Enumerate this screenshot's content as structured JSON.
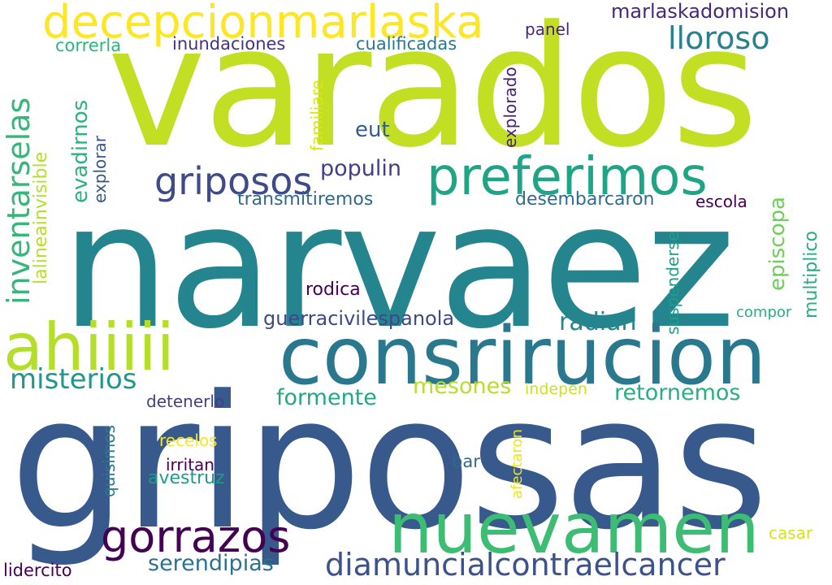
{
  "words": [
    {
      "id": "varados",
      "text": "varados",
      "color": "#c2df23"
    },
    {
      "id": "narvaez",
      "text": "narvaez",
      "color": "#25858e"
    },
    {
      "id": "griposas",
      "text": "griposas",
      "color": "#38598c"
    },
    {
      "id": "consrirucion",
      "text": "consrirucion",
      "color": "#2a788e"
    },
    {
      "id": "nuevamen",
      "text": "nuevamen",
      "color": "#3dbc74"
    },
    {
      "id": "ahiiiii",
      "text": "ahiiiii",
      "color": "#b5de2b"
    },
    {
      "id": "preferimos",
      "text": "preferimos",
      "color": "#20a486"
    },
    {
      "id": "decepcionmarlaska",
      "text": "decepcionmarlaska",
      "color": "#fde725"
    },
    {
      "id": "gorrazos",
      "text": "gorrazos",
      "color": "#440154"
    },
    {
      "id": "diamuncialcontraelcancer",
      "text": "diamuncialcontraelcancer",
      "color": "#3b528b"
    },
    {
      "id": "griposos",
      "text": "griposos",
      "color": "#3e4a89"
    },
    {
      "id": "lloroso",
      "text": "lloroso",
      "color": "#26828e"
    },
    {
      "id": "misterios",
      "text": "misterios",
      "color": "#1f988b"
    },
    {
      "id": "inventarselas",
      "text": "inventarselas",
      "color": "#35b779"
    },
    {
      "id": "marlaskadomision",
      "text": "marlaskadomision",
      "color": "#482878"
    },
    {
      "id": "radian",
      "text": "radian",
      "color": "#25858e"
    },
    {
      "id": "retornemos",
      "text": "retornemos",
      "color": "#29af7f"
    },
    {
      "id": "formente",
      "text": "formente",
      "color": "#22a884"
    },
    {
      "id": "mesones",
      "text": "mesones",
      "color": "#b8de29"
    },
    {
      "id": "serendipias",
      "text": "serendipias",
      "color": "#2c728e"
    },
    {
      "id": "populin",
      "text": "populin",
      "color": "#433e85"
    },
    {
      "id": "episcopa",
      "text": "episcopa",
      "color": "#6ece58"
    },
    {
      "id": "evadirnos",
      "text": "evadirnos",
      "color": "#2db27d"
    },
    {
      "id": "guerracivilespanola",
      "text": "guerracivilespanola",
      "color": "#3e4989"
    },
    {
      "id": "eut",
      "text": "eut",
      "color": "#365c8d"
    },
    {
      "id": "transmitiremos",
      "text": "transmitiremos",
      "color": "#31688e"
    },
    {
      "id": "desembarcaron",
      "text": "desembarcaron",
      "color": "#2e6d8e"
    },
    {
      "id": "inundaciones",
      "text": "inundaciones",
      "color": "#46327e"
    },
    {
      "id": "cualificadas",
      "text": "cualificadas",
      "color": "#2a788e"
    },
    {
      "id": "correrla",
      "text": "correrla",
      "color": "#2fb47c"
    },
    {
      "id": "lalineainvisible",
      "text": "lalineainvisible",
      "color": "#b5de2b"
    },
    {
      "id": "explorar",
      "text": "explorar",
      "color": "#39568c"
    },
    {
      "id": "explorado",
      "text": "explorado",
      "color": "#482173"
    },
    {
      "id": "familiare",
      "text": "familiare",
      "color": "#dce319"
    },
    {
      "id": "panel",
      "text": "panel",
      "color": "#482475"
    },
    {
      "id": "escola",
      "text": "escola",
      "color": "#440154"
    },
    {
      "id": "multiplico",
      "text": "multiplico",
      "color": "#27ad81"
    },
    {
      "id": "suspenderse",
      "text": "suspenderse",
      "color": "#1f9e89"
    },
    {
      "id": "compor",
      "text": "compor",
      "color": "#28ae80"
    },
    {
      "id": "rodica",
      "text": "rodica",
      "color": "#440154"
    },
    {
      "id": "detenerlo",
      "text": "detenerlo",
      "color": "#433e85"
    },
    {
      "id": "indepen",
      "text": "indepen",
      "color": "#d0e11c"
    },
    {
      "id": "quisimos",
      "text": "quisimos",
      "color": "#2a788e"
    },
    {
      "id": "recelos",
      "text": "recelos",
      "color": "#f8e621"
    },
    {
      "id": "irritan",
      "text": "irritan",
      "color": "#440154"
    },
    {
      "id": "avestruz",
      "text": "avestruz",
      "color": "#1f9a8a"
    },
    {
      "id": "afectaron",
      "text": "afectaron",
      "color": "#f1e51d"
    },
    {
      "id": "bar",
      "text": "bar",
      "color": "#31688e"
    },
    {
      "id": "casar",
      "text": "casar",
      "color": "#d8e219"
    },
    {
      "id": "lidercito",
      "text": "lidercito",
      "color": "#440154"
    }
  ]
}
